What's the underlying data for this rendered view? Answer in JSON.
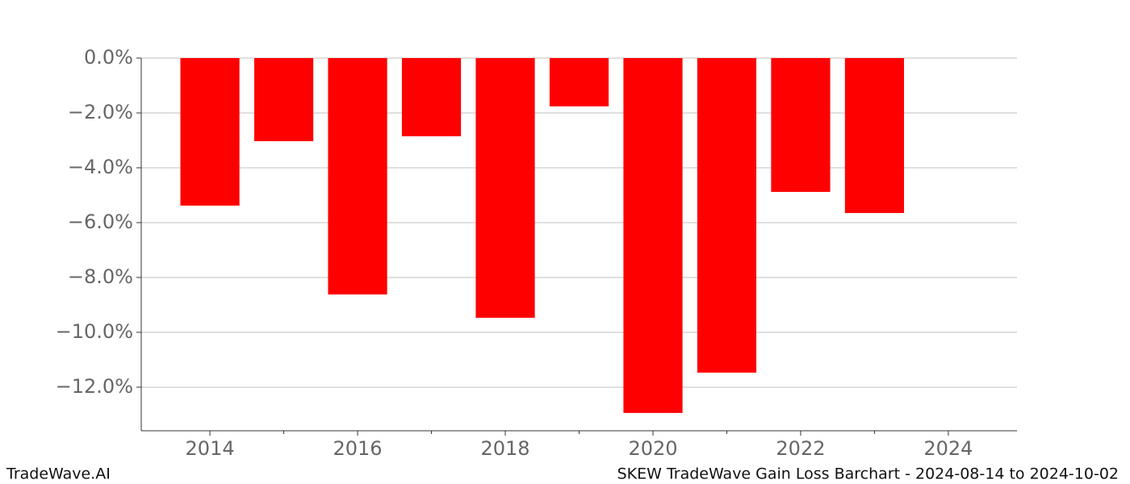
{
  "chart_data": {
    "type": "bar",
    "title": "SKEW TradeWave Gain Loss Barchart - 2024-08-14 to 2024-10-02",
    "brand": "TradeWave.AI",
    "x": [
      2014,
      2015,
      2016,
      2017,
      2018,
      2019,
      2020,
      2021,
      2022,
      2023
    ],
    "values": [
      -5.38,
      -3.03,
      -8.62,
      -2.85,
      -9.47,
      -1.76,
      -12.94,
      -11.47,
      -4.88,
      -5.65
    ],
    "color": "#ff0000",
    "bar_width": 0.8,
    "xlim": [
      2013.07,
      2024.93
    ],
    "xticks": [
      2014,
      2016,
      2018,
      2020,
      2022,
      2024
    ],
    "xminorticks": [
      2015,
      2017,
      2019,
      2021,
      2023
    ],
    "ylim": [
      -13.59,
      0
    ],
    "yticks": [
      {
        "value": 0,
        "label": "0.0%"
      },
      {
        "value": -2,
        "label": "−2.0%"
      },
      {
        "value": -4,
        "label": "−4.0%"
      },
      {
        "value": -6,
        "label": "−6.0%"
      },
      {
        "value": -8,
        "label": "−8.0%"
      },
      {
        "value": -10,
        "label": "−10.0%"
      },
      {
        "value": -12,
        "label": "−12.0%"
      }
    ],
    "grid": true
  }
}
